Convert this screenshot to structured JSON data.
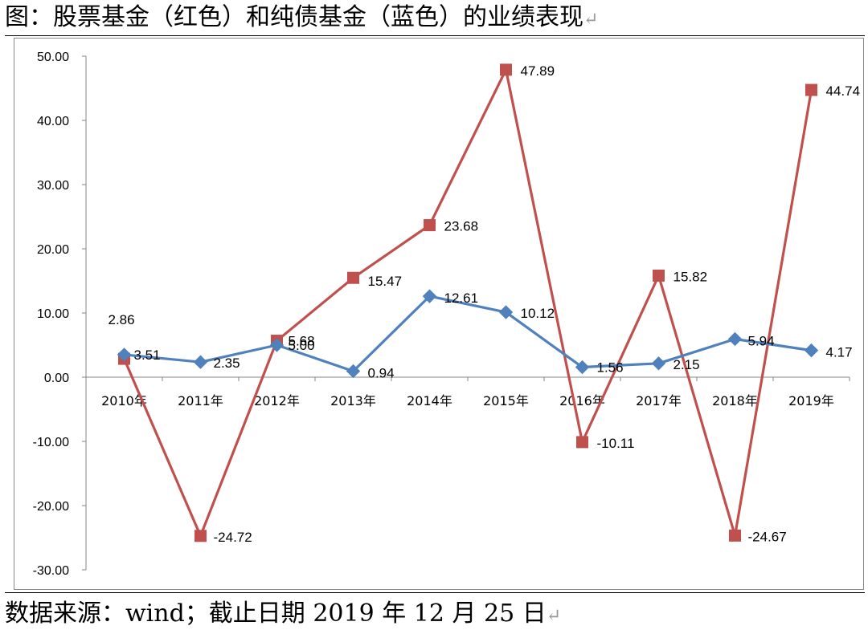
{
  "title": "图：股票基金（红色）和纯债基金（蓝色）的业绩表现",
  "source": "数据来源：wind；截止日期 2019 年 12 月 25 日",
  "paragraph_mark": "↵",
  "chart_data": {
    "type": "line",
    "categories": [
      "2010年",
      "2011年",
      "2012年",
      "2013年",
      "2014年",
      "2015年",
      "2016年",
      "2017年",
      "2018年",
      "2019年"
    ],
    "series": [
      {
        "color": "#C0504D",
        "marker": "square",
        "values": [
          2.86,
          -24.72,
          5.68,
          15.47,
          23.68,
          47.89,
          -10.11,
          15.82,
          -24.67,
          44.74
        ],
        "labels": [
          "2.86",
          "-24.72",
          "5.68",
          "15.47",
          "23.68",
          "47.89",
          "-10.11",
          "15.82",
          "-24.67",
          "44.74"
        ]
      },
      {
        "color": "#4F81BD",
        "marker": "diamond",
        "values": [
          3.51,
          2.35,
          5.0,
          0.94,
          12.61,
          10.12,
          1.56,
          2.15,
          5.94,
          4.17
        ],
        "labels": [
          "3.51",
          "2.35",
          "5.00",
          "0.94",
          "12.61",
          "10.12",
          "1.56",
          "2.15",
          "5.94",
          "4.17"
        ]
      }
    ],
    "ylim": [
      -30,
      50
    ],
    "ytick_values": [
      50,
      40,
      30,
      20,
      10,
      0,
      -10,
      -20,
      -30
    ],
    "yticks": [
      "50.00",
      "40.00",
      "30.00",
      "20.00",
      "10.00",
      "0.00",
      "-10.00",
      "-20.00",
      "-30.00"
    ],
    "legend": false,
    "grid": false
  }
}
